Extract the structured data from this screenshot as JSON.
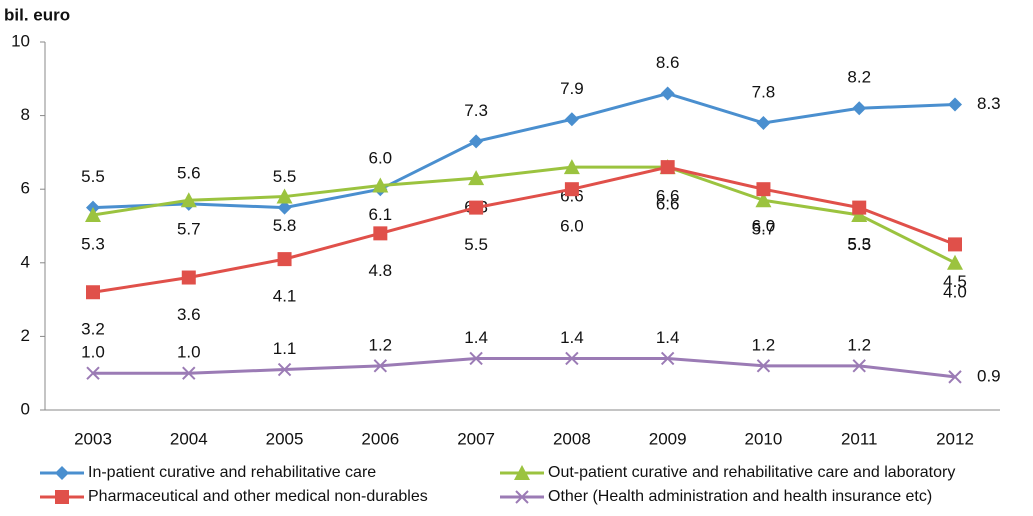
{
  "chart_data": {
    "type": "line",
    "y_axis_label": "bil. euro",
    "categories": [
      "2003",
      "2004",
      "2005",
      "2006",
      "2007",
      "2008",
      "2009",
      "2010",
      "2011",
      "2012"
    ],
    "ylim": [
      0,
      10
    ],
    "yticks": [
      0,
      2,
      4,
      6,
      8,
      10
    ],
    "grid": false,
    "series": [
      {
        "name": "In-patient curative and rehabilitative care",
        "color": "#4a8fcf",
        "marker": "diamond",
        "values": [
          5.5,
          5.6,
          5.5,
          6.0,
          7.3,
          7.9,
          8.6,
          7.8,
          8.2,
          8.3
        ],
        "value_labels": [
          "5.5",
          "5.6",
          "5.5",
          "6.0",
          "7.3",
          "7.9",
          "8.6",
          "7.8",
          "8.2",
          "8.3"
        ]
      },
      {
        "name": "Out-patient curative and rehabilitative care and laboratory",
        "color": "#9bc33f",
        "marker": "triangle",
        "values": [
          5.3,
          5.7,
          5.8,
          6.1,
          6.3,
          6.6,
          6.6,
          5.7,
          5.3,
          4.0
        ],
        "value_labels": [
          "5.3",
          "5.7",
          "5.8",
          "6.1",
          "6.3",
          "6.6",
          "6.6",
          "5.7",
          "5.3",
          "4.0"
        ]
      },
      {
        "name": "Pharmaceutical and other medical non-durables",
        "color": "#e0504a",
        "marker": "square",
        "values": [
          3.2,
          3.6,
          4.1,
          4.8,
          5.5,
          6.0,
          6.6,
          6.0,
          5.5,
          4.5
        ],
        "value_labels": [
          "3.2",
          "3.6",
          "4.1",
          "4.8",
          "5.5",
          "6.0",
          "6.6",
          "6.0",
          "5.5",
          "4.5"
        ]
      },
      {
        "name": "Other (Health administration and health insurance etc)",
        "color": "#9b7bb5",
        "marker": "x",
        "values": [
          1.0,
          1.0,
          1.1,
          1.2,
          1.4,
          1.4,
          1.4,
          1.2,
          1.2,
          0.9
        ],
        "value_labels": [
          "1.0",
          "1.0",
          "1.1",
          "1.2",
          "1.4",
          "1.4",
          "1.4",
          "1.2",
          "1.2",
          "0.9"
        ]
      }
    ]
  }
}
